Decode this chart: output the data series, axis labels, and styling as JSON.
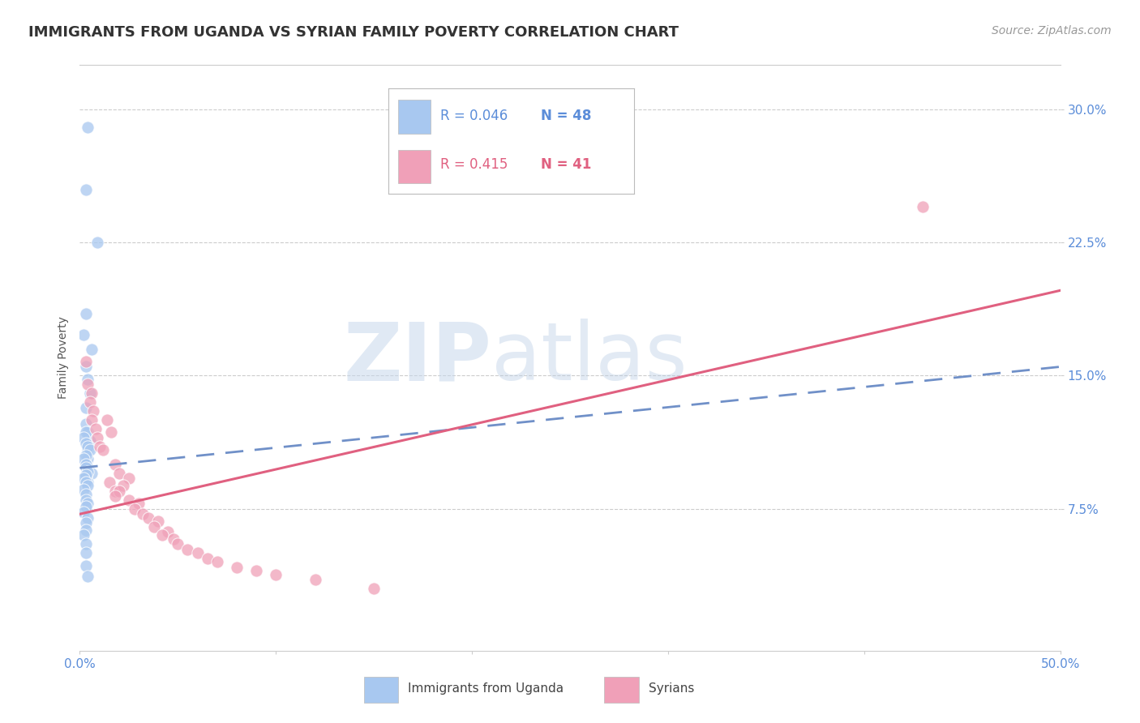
{
  "title": "IMMIGRANTS FROM UGANDA VS SYRIAN FAMILY POVERTY CORRELATION CHART",
  "source": "Source: ZipAtlas.com",
  "ylabel": "Family Poverty",
  "ytick_values": [
    0.075,
    0.15,
    0.225,
    0.3
  ],
  "ytick_labels": [
    "7.5%",
    "15.0%",
    "22.5%",
    "30.0%"
  ],
  "xlim": [
    0.0,
    0.5
  ],
  "ylim": [
    -0.005,
    0.325
  ],
  "watermark_zip": "ZIP",
  "watermark_atlas": "atlas",
  "legend_r1": "R = 0.046",
  "legend_n1": "N = 48",
  "legend_r2": "R = 0.415",
  "legend_n2": "N = 41",
  "legend_label1": "Immigrants from Uganda",
  "legend_label2": "Syrians",
  "color_uganda": "#A8C8F0",
  "color_syria": "#F0A0B8",
  "color_uganda_line": "#7090C8",
  "color_syria_line": "#E06080",
  "uganda_x": [
    0.004,
    0.003,
    0.009,
    0.003,
    0.002,
    0.006,
    0.003,
    0.004,
    0.005,
    0.003,
    0.003,
    0.004,
    0.005,
    0.004,
    0.004,
    0.003,
    0.004,
    0.006,
    0.003,
    0.004,
    0.003,
    0.002,
    0.003,
    0.004,
    0.005,
    0.003,
    0.002,
    0.003,
    0.003,
    0.004,
    0.003,
    0.002,
    0.003,
    0.004,
    0.002,
    0.003,
    0.003,
    0.004,
    0.003,
    0.002,
    0.004,
    0.003,
    0.003,
    0.002,
    0.003,
    0.003,
    0.003,
    0.004
  ],
  "uganda_y": [
    0.29,
    0.255,
    0.225,
    0.185,
    0.173,
    0.165,
    0.155,
    0.148,
    0.14,
    0.132,
    0.123,
    0.118,
    0.113,
    0.108,
    0.103,
    0.1,
    0.098,
    0.095,
    0.093,
    0.09,
    0.118,
    0.115,
    0.112,
    0.11,
    0.108,
    0.105,
    0.103,
    0.1,
    0.098,
    0.096,
    0.094,
    0.092,
    0.09,
    0.088,
    0.086,
    0.083,
    0.08,
    0.078,
    0.076,
    0.073,
    0.07,
    0.067,
    0.063,
    0.06,
    0.055,
    0.05,
    0.043,
    0.037
  ],
  "syria_x": [
    0.003,
    0.004,
    0.006,
    0.005,
    0.007,
    0.006,
    0.008,
    0.009,
    0.01,
    0.012,
    0.014,
    0.016,
    0.018,
    0.02,
    0.015,
    0.018,
    0.025,
    0.022,
    0.02,
    0.018,
    0.025,
    0.03,
    0.028,
    0.032,
    0.035,
    0.04,
    0.038,
    0.045,
    0.042,
    0.048,
    0.05,
    0.055,
    0.06,
    0.065,
    0.07,
    0.08,
    0.09,
    0.1,
    0.12,
    0.15,
    0.43
  ],
  "syria_y": [
    0.158,
    0.145,
    0.14,
    0.135,
    0.13,
    0.125,
    0.12,
    0.115,
    0.11,
    0.108,
    0.125,
    0.118,
    0.1,
    0.095,
    0.09,
    0.085,
    0.092,
    0.088,
    0.085,
    0.082,
    0.08,
    0.078,
    0.075,
    0.072,
    0.07,
    0.068,
    0.065,
    0.062,
    0.06,
    0.058,
    0.055,
    0.052,
    0.05,
    0.047,
    0.045,
    0.042,
    0.04,
    0.038,
    0.035,
    0.03,
    0.245
  ],
  "xtick_positions": [
    0.0,
    0.1,
    0.2,
    0.3,
    0.4,
    0.5
  ],
  "grid_color": "#CCCCCC",
  "background_color": "#FFFFFF",
  "title_fontsize": 13,
  "axis_label_fontsize": 10,
  "tick_fontsize": 11,
  "source_fontsize": 10
}
